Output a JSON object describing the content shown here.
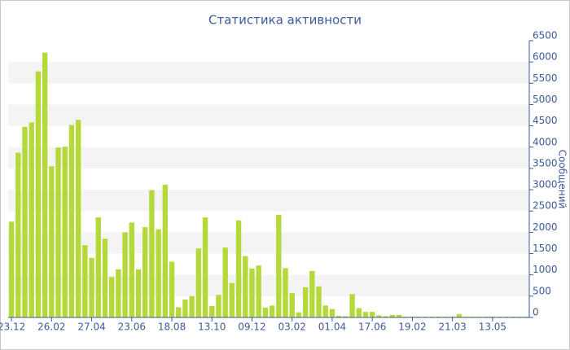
{
  "chart_data": {
    "type": "bar",
    "title": "Статистика активности",
    "y_label": "Сообщений",
    "categories": [
      "23.12",
      null,
      null,
      null,
      null,
      null,
      "26.02",
      null,
      null,
      null,
      null,
      null,
      "27.04",
      null,
      null,
      null,
      null,
      null,
      "23.06",
      null,
      null,
      null,
      null,
      null,
      "18.08",
      null,
      null,
      null,
      null,
      null,
      "13.10",
      null,
      null,
      null,
      null,
      null,
      "09.12",
      null,
      null,
      null,
      null,
      null,
      "03.02",
      null,
      null,
      null,
      null,
      null,
      "01.04",
      null,
      null,
      null,
      null,
      null,
      "17.06",
      null,
      null,
      null,
      null,
      null,
      "19.02",
      null,
      null,
      null,
      null,
      null,
      "21.03",
      null,
      null,
      null,
      null,
      null,
      "13.05",
      null,
      null,
      null,
      null,
      null
    ],
    "values": [
      2250,
      3870,
      4480,
      4580,
      5780,
      6220,
      3550,
      3990,
      4010,
      4520,
      4640,
      1700,
      1400,
      2350,
      1850,
      950,
      1130,
      2000,
      2230,
      1130,
      2120,
      2990,
      2070,
      3120,
      1310,
      240,
      420,
      500,
      1620,
      2350,
      270,
      530,
      1640,
      810,
      2280,
      1440,
      1150,
      1220,
      230,
      280,
      2410,
      1160,
      570,
      120,
      710,
      1090,
      730,
      280,
      200,
      40,
      30,
      550,
      220,
      130,
      130,
      50,
      30,
      60,
      60,
      20,
      20,
      20,
      20,
      20,
      20,
      20,
      20,
      80,
      20,
      20,
      20,
      20,
      20,
      20,
      20,
      20,
      20,
      20
    ],
    "color": "#b5d93a",
    "ylim": [
      0,
      6500
    ],
    "yticks": [
      0,
      500,
      1000,
      1500,
      2000,
      2500,
      3000,
      3500,
      4000,
      4500,
      5000,
      5500,
      6000,
      6500
    ],
    "grid": true
  }
}
